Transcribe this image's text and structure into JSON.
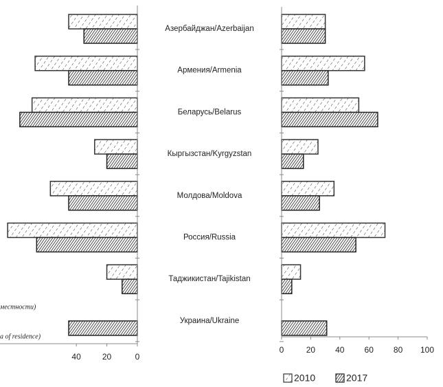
{
  "chart_data": {
    "type": "bar",
    "orientation": "horizontal",
    "categories": [
      "Азербайджан/Azerbaijan",
      "Армения/Armenia",
      "Беларусь/Belarus",
      "Кыргызстан/Kyrgyzstan",
      "Молдова/Moldova",
      "Россия/Russia",
      "Таджикистан/Tajikistan",
      "Украина/Ukraine"
    ],
    "legend": [
      {
        "name": "2010",
        "color": "#333333"
      },
      {
        "name": "2017",
        "color": "#222222"
      }
    ],
    "annotations": [
      "местности)",
      "a of residence)"
    ],
    "panels": [
      {
        "xlim": [
          90,
          0
        ],
        "xticks": [
          40,
          20,
          0
        ],
        "series": [
          {
            "values": [
              45,
              67,
              69,
              28,
              57,
              85,
              20,
              null
            ]
          },
          {
            "values": [
              35,
              45,
              77,
              20,
              45,
              66,
              10,
              45
            ]
          }
        ]
      },
      {
        "xlim": [
          0,
          100
        ],
        "xticks": [
          0,
          20,
          40,
          60,
          80,
          100
        ],
        "series": [
          {
            "values": [
              30,
              57,
              53,
              25,
              36,
              71,
              13,
              null
            ]
          },
          {
            "values": [
              30,
              32,
              66,
              15,
              26,
              51,
              7,
              31
            ]
          }
        ]
      }
    ]
  }
}
